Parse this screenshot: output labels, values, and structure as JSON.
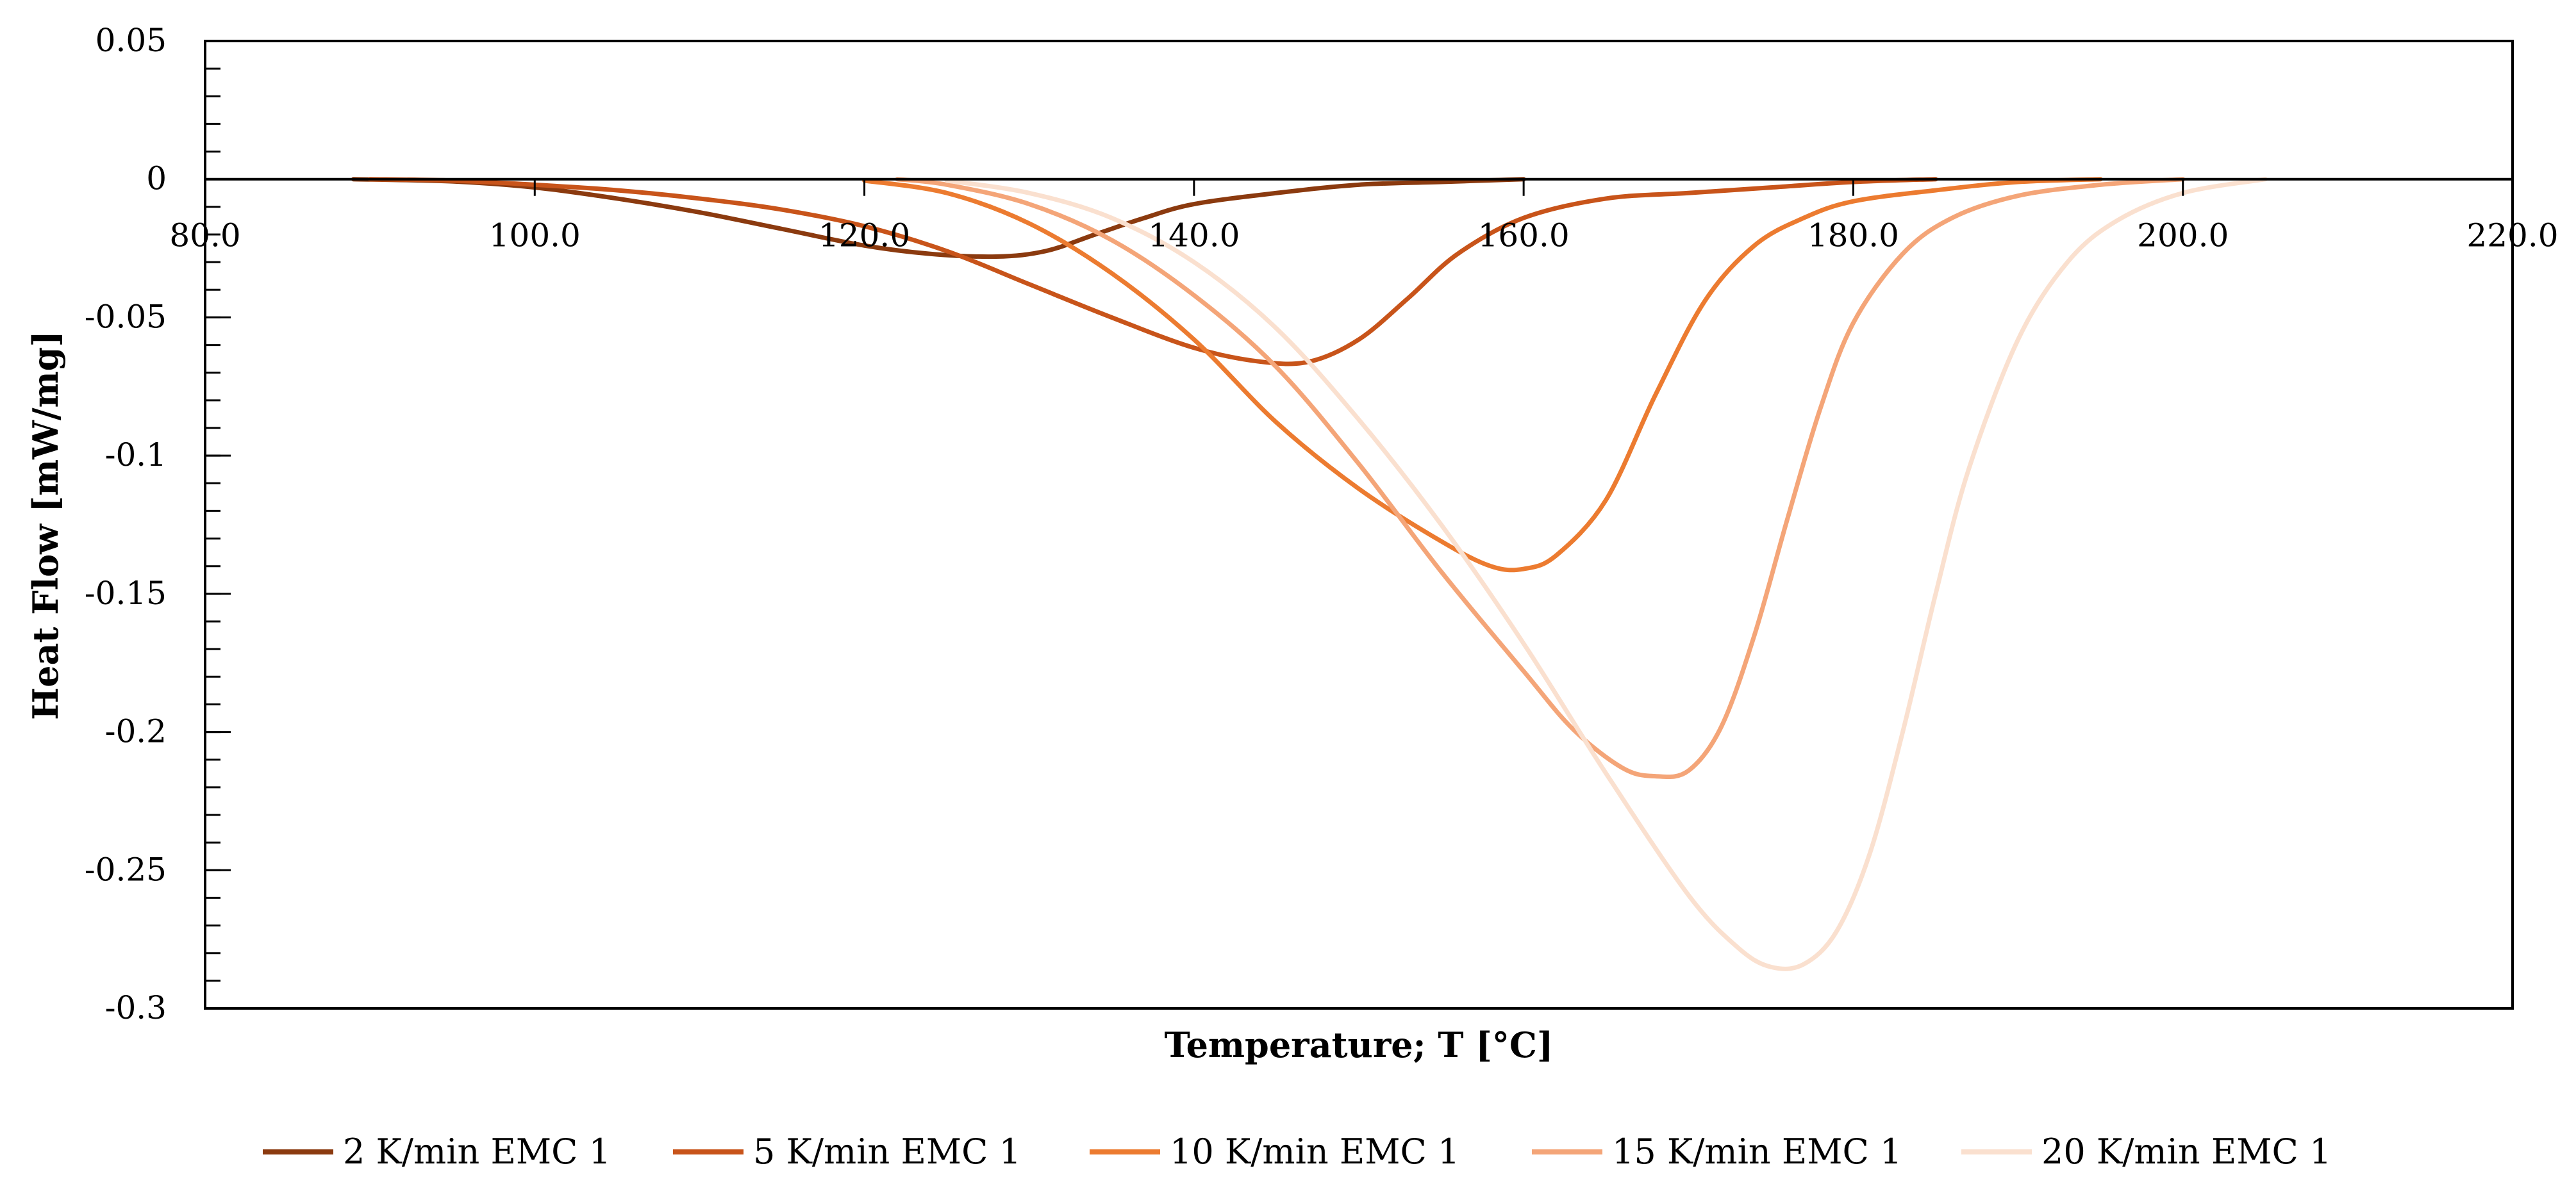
{
  "chart_data": {
    "type": "line",
    "title": "",
    "xlabel": "Temperature; T [°C]",
    "ylabel": "Heat Flow [mW/mg]",
    "xlim": [
      80,
      220
    ],
    "ylim": [
      -0.3,
      0.05
    ],
    "x_ticks": [
      80,
      100,
      120,
      140,
      160,
      180,
      200,
      220
    ],
    "x_tick_labels": [
      "80.0",
      "100.0",
      "120.0",
      "140.0",
      "160.0",
      "180.0",
      "200.0",
      "220.0"
    ],
    "y_ticks": [
      0.05,
      0,
      -0.05,
      -0.1,
      -0.15,
      -0.2,
      -0.25,
      -0.3
    ],
    "y_tick_labels": [
      "0.05",
      "0",
      "-0.05",
      "-0.1",
      "-0.15",
      "-0.2",
      "-0.25",
      "-0.3"
    ],
    "grid": false,
    "legend_position": "bottom",
    "series": [
      {
        "name": "2 K/min EMC 1",
        "color": "#8b3a0f",
        "x": [
          89,
          95,
          100,
          105,
          110,
          115,
          120,
          124,
          128,
          131,
          134,
          137,
          140,
          145,
          150,
          155,
          160
        ],
        "y": [
          0,
          -0.0008,
          -0.003,
          -0.007,
          -0.012,
          -0.018,
          -0.024,
          -0.027,
          -0.028,
          -0.026,
          -0.02,
          -0.014,
          -0.009,
          -0.005,
          -0.002,
          -0.001,
          0
        ]
      },
      {
        "name": "5 K/min EMC 1",
        "color": "#c8541a",
        "x": [
          90,
          95,
          100,
          105,
          110,
          115,
          120,
          125,
          130,
          135,
          140,
          144,
          147,
          150,
          153,
          156,
          160,
          165,
          170,
          175,
          180,
          185
        ],
        "y": [
          0,
          -0.0005,
          -0.002,
          -0.004,
          -0.007,
          -0.011,
          -0.017,
          -0.026,
          -0.038,
          -0.05,
          -0.061,
          -0.066,
          -0.066,
          -0.058,
          -0.043,
          -0.027,
          -0.014,
          -0.007,
          -0.005,
          -0.003,
          -0.001,
          0
        ]
      },
      {
        "name": "10 K/min EMC 1",
        "color": "#ec7b30",
        "x": [
          120,
          125,
          130,
          135,
          140,
          145,
          150,
          155,
          158,
          160,
          162,
          165,
          168,
          171,
          174,
          177,
          180,
          185,
          190,
          195
        ],
        "y": [
          -0.0005,
          -0.005,
          -0.016,
          -0.034,
          -0.058,
          -0.088,
          -0.112,
          -0.131,
          -0.14,
          -0.141,
          -0.136,
          -0.116,
          -0.078,
          -0.044,
          -0.024,
          -0.014,
          -0.008,
          -0.004,
          -0.001,
          0
        ]
      },
      {
        "name": "15 K/min EMC 1",
        "color": "#f4a578",
        "x": [
          122,
          125,
          130,
          135,
          140,
          145,
          150,
          155,
          160,
          163,
          166,
          168,
          170,
          172,
          174,
          176,
          178,
          180,
          183,
          186,
          190,
          195,
          200
        ],
        "y": [
          0,
          -0.002,
          -0.009,
          -0.022,
          -0.042,
          -0.068,
          -0.103,
          -0.142,
          -0.178,
          -0.199,
          -0.213,
          -0.216,
          -0.214,
          -0.198,
          -0.165,
          -0.123,
          -0.083,
          -0.052,
          -0.027,
          -0.014,
          -0.006,
          -0.002,
          0
        ]
      },
      {
        "name": "20 K/min EMC 1",
        "color": "#fae0cf",
        "x": [
          125,
          130,
          135,
          140,
          145,
          150,
          155,
          160,
          165,
          170,
          173,
          175,
          177,
          179,
          181,
          183,
          185,
          187,
          190,
          193,
          196,
          200,
          205
        ],
        "y": [
          -0.0005,
          -0.005,
          -0.014,
          -0.03,
          -0.054,
          -0.087,
          -0.125,
          -0.168,
          -0.215,
          -0.259,
          -0.278,
          -0.285,
          -0.284,
          -0.272,
          -0.244,
          -0.2,
          -0.15,
          -0.105,
          -0.058,
          -0.03,
          -0.015,
          -0.005,
          0
        ]
      }
    ]
  }
}
